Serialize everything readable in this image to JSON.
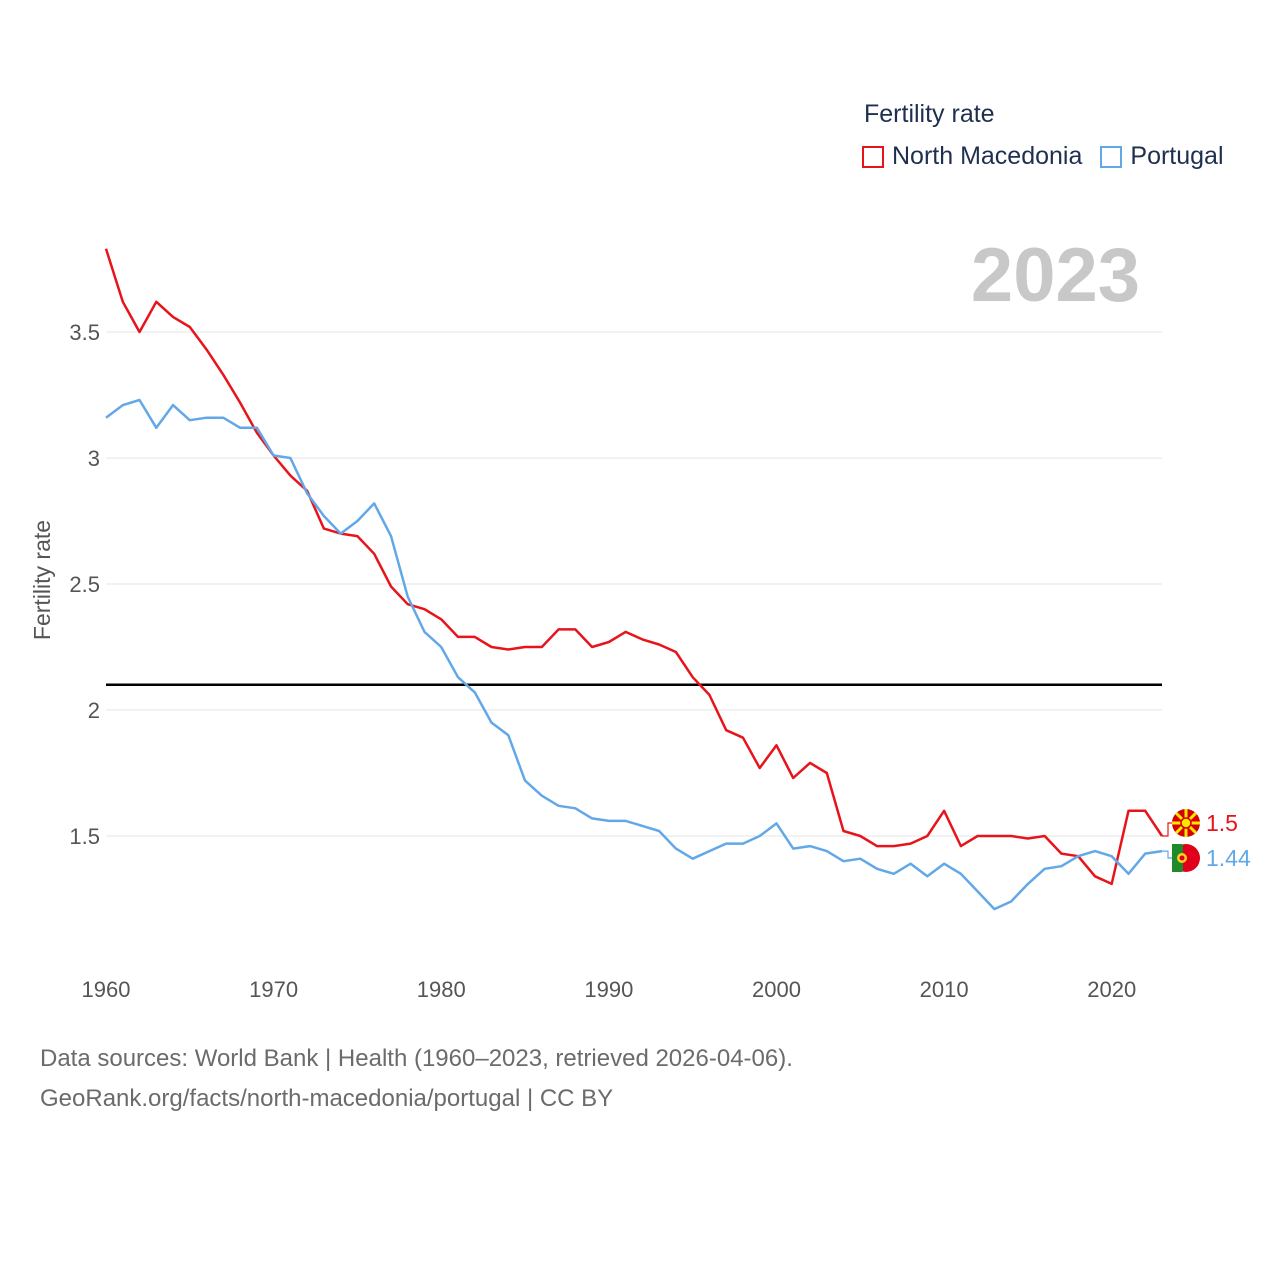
{
  "legend": {
    "title": "Fertility rate",
    "items": [
      {
        "label": "North Macedonia",
        "color": "#e8141b"
      },
      {
        "label": "Portugal",
        "color": "#62a8e8"
      }
    ]
  },
  "year_label": "2023",
  "source": {
    "line1": "Data sources: World Bank | Health (1960–2023, retrieved 2026-04-06).",
    "line2": "GeoRank.org/facts/north-macedonia/portugal | CC BY"
  },
  "chart_data": {
    "type": "line",
    "title": "",
    "xlabel": "",
    "ylabel": "Fertility rate",
    "xlim": [
      1960,
      2023
    ],
    "ylim": [
      1.0,
      3.9
    ],
    "yticks": [
      1.5,
      2,
      2.5,
      3,
      3.5
    ],
    "ytick_labels": [
      "1.5",
      "2",
      "2.5",
      "3",
      "3.5"
    ],
    "xticks": [
      1960,
      1970,
      1980,
      1990,
      2000,
      2010,
      2020
    ],
    "xtick_labels": [
      "1960",
      "1970",
      "1980",
      "1990",
      "2000",
      "2010",
      "2020"
    ],
    "reference_line": {
      "y": 2.1,
      "color": "#000000"
    },
    "x": [
      1960,
      1961,
      1962,
      1963,
      1964,
      1965,
      1966,
      1967,
      1968,
      1969,
      1970,
      1971,
      1972,
      1973,
      1974,
      1975,
      1976,
      1977,
      1978,
      1979,
      1980,
      1981,
      1982,
      1983,
      1984,
      1985,
      1986,
      1987,
      1988,
      1989,
      1990,
      1991,
      1992,
      1993,
      1994,
      1995,
      1996,
      1997,
      1998,
      1999,
      2000,
      2001,
      2002,
      2003,
      2004,
      2005,
      2006,
      2007,
      2008,
      2009,
      2010,
      2011,
      2012,
      2013,
      2014,
      2015,
      2016,
      2017,
      2018,
      2019,
      2020,
      2021,
      2022,
      2023
    ],
    "series": [
      {
        "name": "North Macedonia",
        "color": "#e8141b",
        "end_label": "1.5",
        "values": [
          3.83,
          3.62,
          3.5,
          3.62,
          3.56,
          3.52,
          3.43,
          3.33,
          3.22,
          3.1,
          3.01,
          2.93,
          2.87,
          2.72,
          2.7,
          2.69,
          2.62,
          2.49,
          2.42,
          2.4,
          2.36,
          2.29,
          2.29,
          2.25,
          2.24,
          2.25,
          2.25,
          2.32,
          2.32,
          2.25,
          2.27,
          2.31,
          2.28,
          2.26,
          2.23,
          2.13,
          2.06,
          1.92,
          1.89,
          1.77,
          1.86,
          1.73,
          1.79,
          1.75,
          1.52,
          1.5,
          1.46,
          1.46,
          1.47,
          1.5,
          1.6,
          1.46,
          1.5,
          1.5,
          1.5,
          1.49,
          1.5,
          1.43,
          1.42,
          1.34,
          1.31,
          1.6,
          1.6,
          1.5
        ]
      },
      {
        "name": "Portugal",
        "color": "#62a8e8",
        "end_label": "1.44",
        "values": [
          3.16,
          3.21,
          3.23,
          3.12,
          3.21,
          3.15,
          3.16,
          3.16,
          3.12,
          3.12,
          3.01,
          3.0,
          2.86,
          2.77,
          2.7,
          2.75,
          2.82,
          2.69,
          2.45,
          2.31,
          2.25,
          2.13,
          2.07,
          1.95,
          1.9,
          1.72,
          1.66,
          1.62,
          1.61,
          1.57,
          1.56,
          1.56,
          1.54,
          1.52,
          1.45,
          1.41,
          1.44,
          1.47,
          1.47,
          1.5,
          1.55,
          1.45,
          1.46,
          1.44,
          1.4,
          1.41,
          1.37,
          1.35,
          1.39,
          1.34,
          1.39,
          1.35,
          1.28,
          1.21,
          1.24,
          1.31,
          1.37,
          1.38,
          1.42,
          1.44,
          1.42,
          1.35,
          1.43,
          1.44
        ]
      }
    ]
  }
}
